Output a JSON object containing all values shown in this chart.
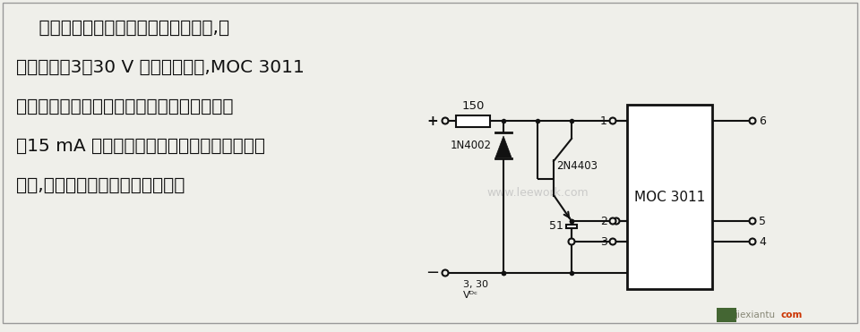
{
  "bg_color": "#efefea",
  "line_color": "#111111",
  "text_color": "#111111",
  "title_lines": [
    "    本电路采用二极管和晶体管相互结合,当",
    "输入电压在3～30 V 直流范围内时,MOC 3011",
    "光电隔离器发光二极管的输入电流被限制到小",
    "于15 mA 的安全极限值。在极性偶然反接的情",
    "况下,本电路也能保护发光二极管。"
  ],
  "watermark": "www.leework.com",
  "footer_right": "jiexiantu",
  "footer_com": "com",
  "resistor_150_label": "150",
  "resistor_51_label": "51",
  "diode_label": "1N4002",
  "transistor_label": "2N4403",
  "ic_label": "MOC 3011",
  "vdc_label1": "3, 30",
  "vdc_label2": "Vᴰᶜ",
  "plus_label": "+",
  "minus_label": "−",
  "pin1": "1",
  "pin2": "2",
  "pin3": "3",
  "pin4": "4",
  "pin5": "5",
  "pin6": "6"
}
